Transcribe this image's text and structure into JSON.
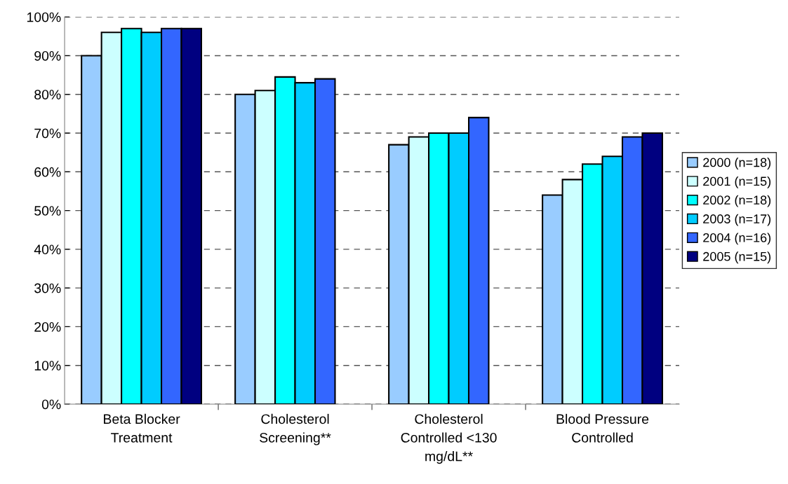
{
  "chart_data": {
    "type": "bar",
    "categories": [
      "Beta Blocker Treatment",
      "Cholesterol Screening**",
      "Cholesterol Controlled <130 mg/dL**",
      "Blood Pressure Controlled"
    ],
    "series": [
      {
        "name": "2000 (n=18)",
        "color": "#99ccff",
        "values": [
          90,
          80,
          67,
          54
        ]
      },
      {
        "name": "2001 (n=15)",
        "color": "#ccffff",
        "values": [
          96,
          81,
          69,
          58
        ]
      },
      {
        "name": "2002 (n=18)",
        "color": "#00ffff",
        "values": [
          97,
          84.5,
          70,
          62
        ]
      },
      {
        "name": "2003 (n=17)",
        "color": "#00ccff",
        "values": [
          96,
          83,
          70,
          64
        ]
      },
      {
        "name": "2004 (n=16)",
        "color": "#3366ff",
        "values": [
          97,
          84,
          74,
          69
        ]
      },
      {
        "name": "2005 (n=15)",
        "color": "#000080",
        "values": [
          97,
          null,
          null,
          70
        ]
      }
    ],
    "ylim": [
      0,
      100
    ],
    "yticks": [
      {
        "value": 0,
        "label": "0%"
      },
      {
        "value": 10,
        "label": "10%"
      },
      {
        "value": 20,
        "label": "20%"
      },
      {
        "value": 30,
        "label": "30%"
      },
      {
        "value": 40,
        "label": "40%"
      },
      {
        "value": 50,
        "label": "50%"
      },
      {
        "value": 60,
        "label": "60%"
      },
      {
        "value": 70,
        "label": "70%"
      },
      {
        "value": 80,
        "label": "80%"
      },
      {
        "value": 90,
        "label": "90%"
      },
      {
        "value": 100,
        "label": "100%"
      }
    ],
    "grid": "y",
    "legend": "right"
  }
}
